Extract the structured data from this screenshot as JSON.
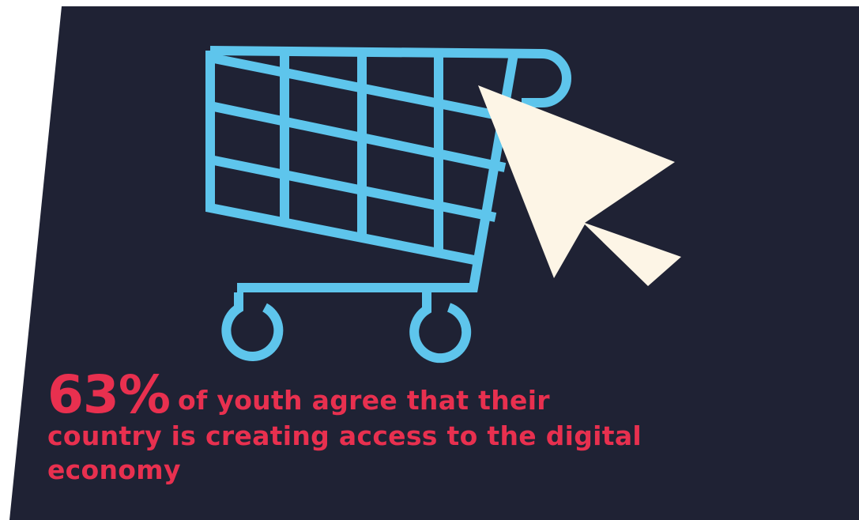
{
  "stat": {
    "number": "63%",
    "text": "of youth agree that their country is creating access to the digital economy"
  },
  "colors": {
    "background": "#1f2234",
    "cart": "#5ec5ec",
    "cursor": "#fdf5e6",
    "accent": "#e8304f"
  },
  "icons": [
    "shopping-cart-icon",
    "mouse-cursor-icon"
  ]
}
